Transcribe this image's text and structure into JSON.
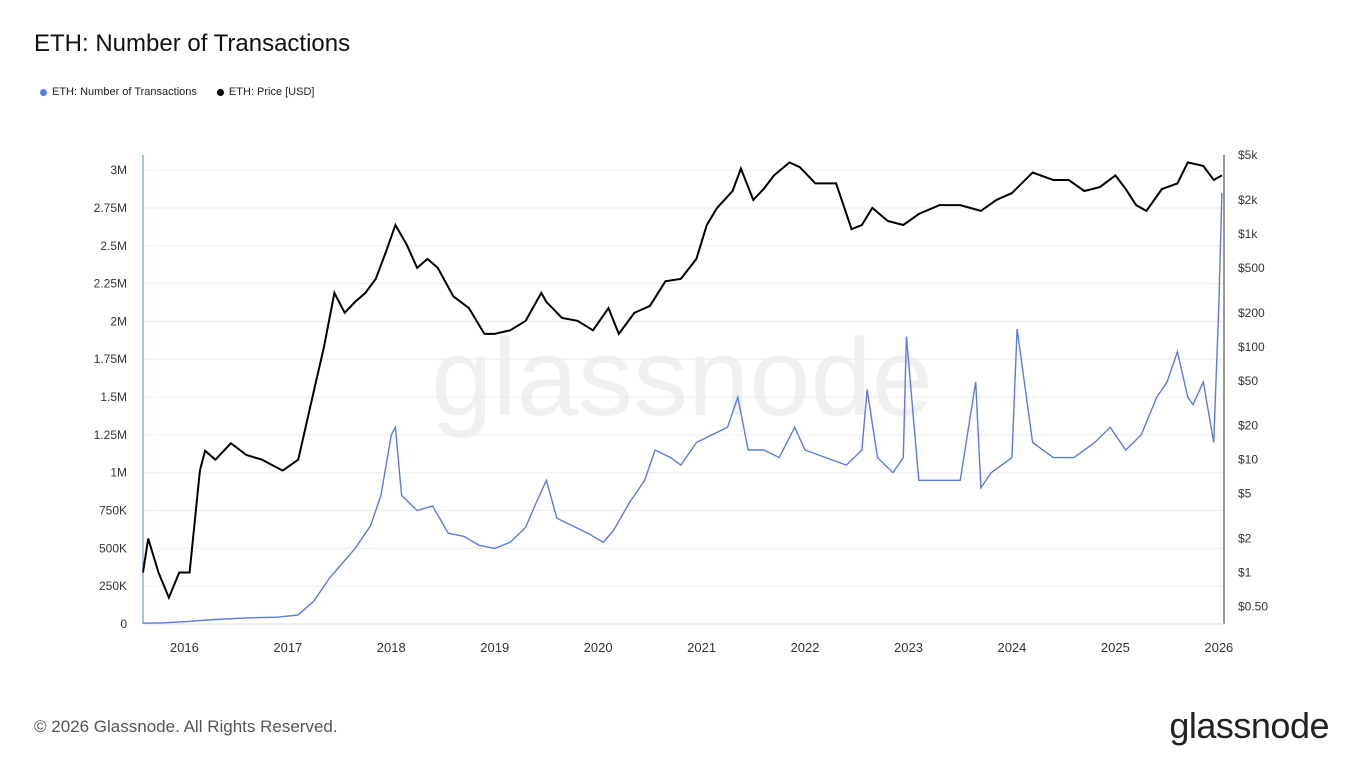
{
  "header": {
    "title": "ETH: Number of Transactions"
  },
  "legend": [
    {
      "label": "ETH: Number of Transactions",
      "color": "#5b7be0"
    },
    {
      "label": "ETH: Price [USD]",
      "color": "#000000"
    }
  ],
  "watermark": "glassnode",
  "footer": {
    "copyright": "© 2026 Glassnode. All Rights Reserved.",
    "brand": "glassnode"
  },
  "chart_data": {
    "type": "line",
    "grid": true,
    "x_ticks": [
      "2016",
      "2017",
      "2018",
      "2019",
      "2020",
      "2021",
      "2022",
      "2023",
      "2024",
      "2025",
      "2026"
    ],
    "y_left": {
      "ticks": [
        "0",
        "250K",
        "500K",
        "750K",
        "1M",
        "1.25M",
        "1.5M",
        "1.75M",
        "2M",
        "2.25M",
        "2.5M",
        "2.75M",
        "3M"
      ],
      "range": [
        0,
        3100000
      ]
    },
    "y_right": {
      "scale": "log",
      "ticks": [
        "$0.50",
        "$1",
        "$2",
        "$5",
        "$10",
        "$20",
        "$50",
        "$100",
        "$200",
        "$500",
        "$1k",
        "$2k",
        "$5k"
      ],
      "range": [
        0.35,
        5000
      ]
    },
    "x_range": [
      2015.6,
      2026.05
    ],
    "series": [
      {
        "name": "ETH: Number of Transactions",
        "axis": "left",
        "color": "#5b7be0",
        "x": [
          2015.6,
          2015.8,
          2016.0,
          2016.3,
          2016.6,
          2016.9,
          2017.1,
          2017.25,
          2017.4,
          2017.5,
          2017.65,
          2017.8,
          2017.9,
          2018.0,
          2018.04,
          2018.1,
          2018.25,
          2018.4,
          2018.55,
          2018.7,
          2018.85,
          2019.0,
          2019.15,
          2019.3,
          2019.4,
          2019.5,
          2019.6,
          2019.75,
          2019.9,
          2020.05,
          2020.15,
          2020.3,
          2020.45,
          2020.55,
          2020.7,
          2020.8,
          2020.95,
          2021.1,
          2021.25,
          2021.35,
          2021.45,
          2021.6,
          2021.75,
          2021.9,
          2022.0,
          2022.2,
          2022.4,
          2022.55,
          2022.6,
          2022.7,
          2022.85,
          2022.95,
          2022.98,
          2023.1,
          2023.3,
          2023.5,
          2023.65,
          2023.7,
          2023.8,
          2024.0,
          2024.05,
          2024.2,
          2024.4,
          2024.6,
          2024.8,
          2024.95,
          2025.1,
          2025.25,
          2025.4,
          2025.5,
          2025.6,
          2025.7,
          2025.75,
          2025.85,
          2025.95,
          2026.0,
          2026.03
        ],
        "values": [
          5000,
          8000,
          15000,
          30000,
          40000,
          45000,
          60000,
          150000,
          300000,
          380000,
          500000,
          650000,
          850000,
          1250000,
          1300000,
          850000,
          750000,
          780000,
          600000,
          580000,
          520000,
          500000,
          540000,
          640000,
          800000,
          950000,
          700000,
          650000,
          600000,
          540000,
          620000,
          800000,
          950000,
          1150000,
          1100000,
          1050000,
          1200000,
          1250000,
          1300000,
          1500000,
          1150000,
          1150000,
          1100000,
          1300000,
          1150000,
          1100000,
          1050000,
          1150000,
          1550000,
          1100000,
          1000000,
          1100000,
          1900000,
          950000,
          950000,
          950000,
          1600000,
          900000,
          1000000,
          1100000,
          1950000,
          1200000,
          1100000,
          1100000,
          1200000,
          1300000,
          1150000,
          1250000,
          1500000,
          1600000,
          1800000,
          1500000,
          1450000,
          1600000,
          1200000,
          2100000,
          2850000
        ]
      },
      {
        "name": "ETH: Price [USD]",
        "axis": "right",
        "color": "#000000",
        "x": [
          2015.6,
          2015.65,
          2015.75,
          2015.85,
          2015.95,
          2016.05,
          2016.15,
          2016.2,
          2016.3,
          2016.45,
          2016.6,
          2016.75,
          2016.95,
          2017.1,
          2017.25,
          2017.35,
          2017.45,
          2017.55,
          2017.65,
          2017.75,
          2017.85,
          2017.95,
          2018.04,
          2018.15,
          2018.25,
          2018.35,
          2018.45,
          2018.6,
          2018.75,
          2018.9,
          2019.0,
          2019.15,
          2019.3,
          2019.45,
          2019.5,
          2019.65,
          2019.8,
          2019.95,
          2020.1,
          2020.2,
          2020.35,
          2020.5,
          2020.65,
          2020.8,
          2020.95,
          2021.05,
          2021.15,
          2021.3,
          2021.38,
          2021.5,
          2021.6,
          2021.7,
          2021.85,
          2021.95,
          2022.1,
          2022.3,
          2022.45,
          2022.55,
          2022.65,
          2022.8,
          2022.95,
          2023.1,
          2023.3,
          2023.5,
          2023.7,
          2023.85,
          2024.0,
          2024.2,
          2024.4,
          2024.55,
          2024.7,
          2024.85,
          2025.0,
          2025.1,
          2025.2,
          2025.3,
          2025.45,
          2025.6,
          2025.7,
          2025.85,
          2025.95,
          2026.03
        ],
        "values": [
          1.0,
          2.0,
          1.0,
          0.6,
          1.0,
          1.0,
          8.0,
          12.0,
          10.0,
          14.0,
          11.0,
          10.0,
          8.0,
          10.0,
          40.0,
          100.0,
          300.0,
          200.0,
          250.0,
          300.0,
          400.0,
          700.0,
          1200.0,
          800.0,
          500.0,
          600.0,
          500.0,
          280.0,
          220.0,
          130.0,
          130.0,
          140.0,
          170.0,
          300.0,
          250.0,
          180.0,
          170.0,
          140.0,
          220.0,
          130.0,
          200.0,
          230.0,
          380.0,
          400.0,
          600.0,
          1200.0,
          1700.0,
          2400.0,
          3800.0,
          2000.0,
          2500.0,
          3300.0,
          4300.0,
          3900.0,
          2800.0,
          2800.0,
          1100.0,
          1200.0,
          1700.0,
          1300.0,
          1200.0,
          1500.0,
          1800.0,
          1800.0,
          1600.0,
          2000.0,
          2300.0,
          3500.0,
          3000.0,
          3000.0,
          2400.0,
          2600.0,
          3300.0,
          2500.0,
          1800.0,
          1600.0,
          2500.0,
          2800.0,
          4300.0,
          4000.0,
          3000.0,
          3300.0
        ]
      }
    ]
  }
}
